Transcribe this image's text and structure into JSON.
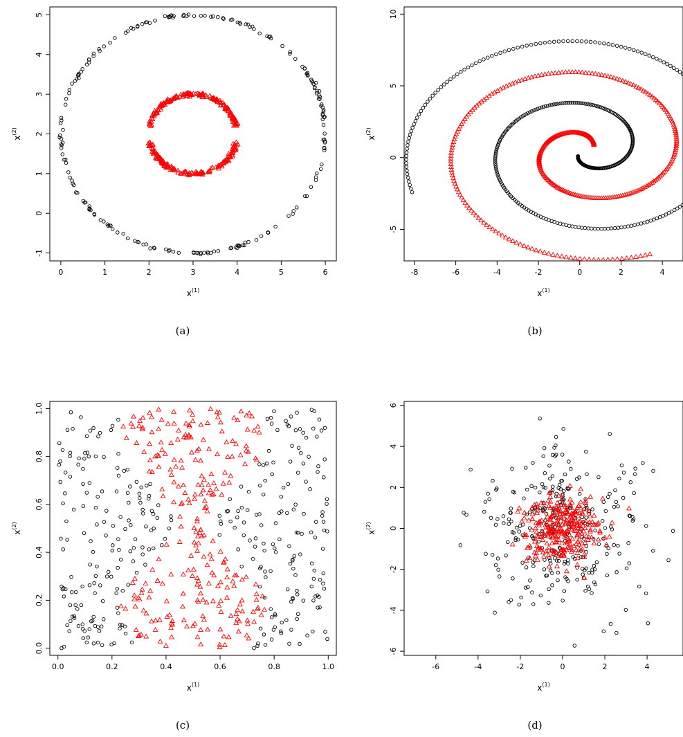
{
  "figure": {
    "captions": [
      "(a)",
      "(b)",
      "(c)",
      "(d)"
    ]
  },
  "colors": {
    "class_circle": "#000000",
    "class_triangle": "#ff0000"
  },
  "chart_data": [
    {
      "panel": "(a)",
      "type": "scatter",
      "xlabel_base": "x",
      "xlabel_sup": "(1)",
      "ylabel_base": "x",
      "ylabel_sup": "(2)",
      "xlim": [
        -0.25,
        6.25
      ],
      "ylim": [
        -1.2,
        5.2
      ],
      "xticks": [
        0,
        1,
        2,
        3,
        4,
        5,
        6
      ],
      "yticks": [
        -1,
        0,
        1,
        2,
        3,
        4,
        5
      ],
      "series": [
        {
          "marker": "circle",
          "color": "#000000",
          "gen": {
            "kind": "circle",
            "cx": 3,
            "cy": 2,
            "r": 3,
            "n": 210,
            "noise": 0.02,
            "seed": 11
          }
        },
        {
          "marker": "triangle",
          "color": "#ff0000",
          "gen": {
            "kind": "arc",
            "cx": 3,
            "cy": 2,
            "r": 1,
            "a0": 0.2,
            "a1": 2.94,
            "n": 170,
            "noise": 0.025,
            "seed": 12
          }
        },
        {
          "marker": "triangle",
          "color": "#ff0000",
          "gen": {
            "kind": "arc",
            "cx": 3,
            "cy": 2,
            "r": 1,
            "a0": 3.34,
            "a1": 6.08,
            "n": 170,
            "noise": 0.025,
            "seed": 13
          }
        }
      ]
    },
    {
      "panel": "(b)",
      "type": "scatter",
      "xlabel_base": "x",
      "xlabel_sup": "(1)",
      "ylabel_base": "x",
      "ylabel_sup": "(2)",
      "xlim": [
        -8.5,
        5.0
      ],
      "ylim": [
        -7.2,
        10.5
      ],
      "xticks": [
        -8,
        -6,
        -4,
        -2,
        0,
        2,
        4
      ],
      "yticks": [
        -5,
        0,
        5,
        10
      ],
      "series": [
        {
          "marker": "circle",
          "color": "#000000",
          "gen": {
            "kind": "spiral",
            "t0": 0.8,
            "t1": 12.9,
            "n": 420,
            "k": 0.69,
            "phase": 3.1416,
            "seed": 21
          }
        },
        {
          "marker": "triangle",
          "color": "#ff0000",
          "gen": {
            "kind": "spiral",
            "t0": 0.8,
            "t1": 11.4,
            "n": 360,
            "k": 0.69,
            "phase": 0.0,
            "seed": 22
          }
        }
      ]
    },
    {
      "panel": "(c)",
      "type": "scatter",
      "xlabel_base": "x",
      "xlabel_sup": "(1)",
      "ylabel_base": "x",
      "ylabel_sup": "(2)",
      "xlim": [
        -0.03,
        1.03
      ],
      "ylim": [
        -0.03,
        1.03
      ],
      "xticks": [
        0.0,
        0.2,
        0.4,
        0.6,
        0.8,
        1.0
      ],
      "yticks": [
        0.0,
        0.2,
        0.4,
        0.6,
        0.8,
        1.0
      ],
      "tick_format": "1dp",
      "series": [
        {
          "marker": "circle",
          "color": "#000000",
          "gen": {
            "kind": "uniform_split",
            "which": "outside",
            "n": 330,
            "seed": 31
          }
        },
        {
          "marker": "triangle",
          "color": "#ff0000",
          "gen": {
            "kind": "uniform_split",
            "which": "inside",
            "n": 270,
            "seed": 31
          }
        }
      ]
    },
    {
      "panel": "(d)",
      "type": "scatter",
      "xlabel_base": "x",
      "xlabel_sup": "(1)",
      "ylabel_base": "x",
      "ylabel_sup": "(2)",
      "xlim": [
        -7.5,
        5.7
      ],
      "ylim": [
        -6.2,
        6.2
      ],
      "xticks": [
        -6,
        -4,
        -2,
        0,
        2,
        4
      ],
      "yticks": [
        -6,
        -4,
        -2,
        0,
        2,
        4,
        6
      ],
      "series": [
        {
          "marker": "circle",
          "color": "#000000",
          "gen": {
            "kind": "gauss",
            "sd": 2.0,
            "n": 300,
            "seed": 41
          }
        },
        {
          "marker": "triangle",
          "color": "#ff0000",
          "gen": {
            "kind": "gauss",
            "sd": 0.9,
            "n": 300,
            "seed": 42
          }
        }
      ]
    }
  ]
}
